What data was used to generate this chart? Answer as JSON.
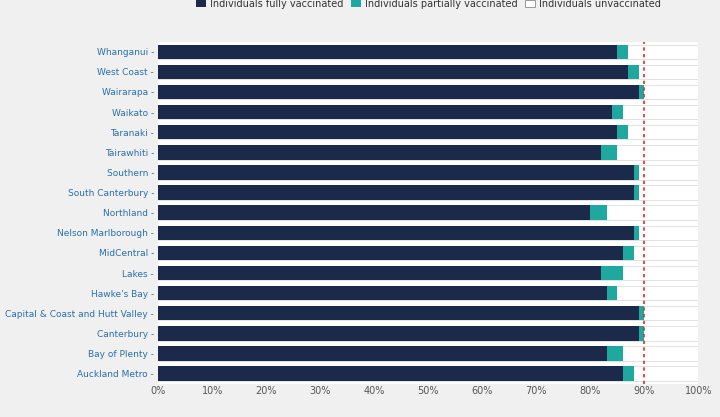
{
  "regions": [
    "Auckland Metro",
    "Bay of Plenty",
    "Canterbury",
    "Capital & Coast and Hutt Valley",
    "Hawke's Bay",
    "Lakes",
    "MidCentral",
    "Nelson Marlborough",
    "Northland",
    "South Canterbury",
    "Southern",
    "Tairawhiti",
    "Taranaki",
    "Waikato",
    "Wairarapa",
    "West Coast",
    "Whanganui"
  ],
  "fully_vaccinated": [
    86,
    83,
    89,
    89,
    83,
    82,
    86,
    88,
    80,
    88,
    88,
    82,
    85,
    84,
    89,
    87,
    85
  ],
  "partially_vaccinated": [
    2,
    3,
    1,
    1,
    2,
    4,
    2,
    1,
    3,
    1,
    1,
    3,
    2,
    2,
    1,
    2,
    2
  ],
  "fully_color": "#1b2a4a",
  "partially_color": "#1fa8a0",
  "unvaccinated_color": "#ffffff",
  "bar_border_color": "#cccccc",
  "plot_bg_color": "#ffffff",
  "fig_bg_color": "#f0f0f0",
  "reference_line_x": 90,
  "reference_line_color": "#e03030",
  "label_text_color": "#2a6fa8",
  "tick_label_color": "#555555",
  "legend_labels": [
    "Individuals fully vaccinated",
    "Individuals partially vaccinated",
    "Individuals unvaccinated"
  ],
  "xlabel_ticks": [
    0,
    10,
    20,
    30,
    40,
    50,
    60,
    70,
    80,
    90,
    100
  ],
  "xlim": [
    0,
    100
  ]
}
